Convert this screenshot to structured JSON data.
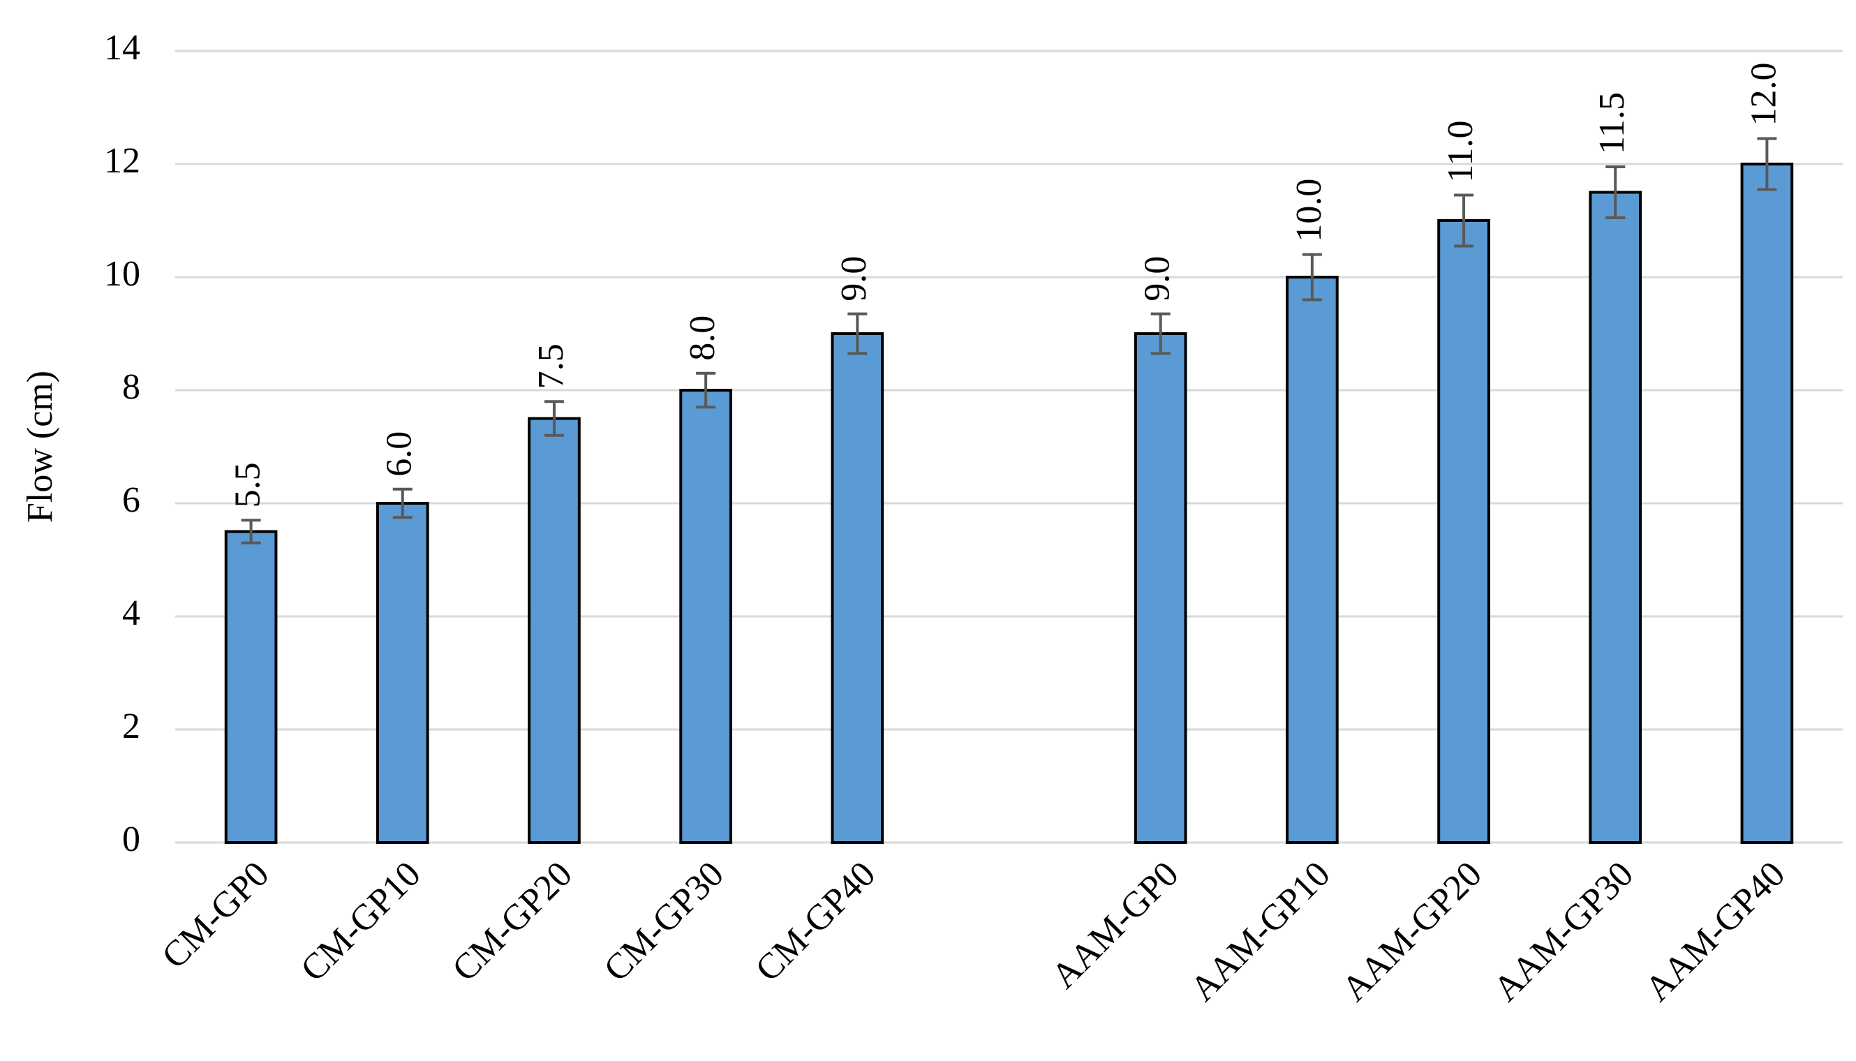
{
  "chart_data": {
    "type": "bar",
    "y_label": "Flow (cm)",
    "categories": [
      "CM-GP0",
      "CM-GP10",
      "CM-GP20",
      "CM-GP30",
      "CM-GP40",
      null,
      "AAM-GP0",
      "AAM-GP10",
      "AAM-GP20",
      "AAM-GP30",
      "AAM-GP40"
    ],
    "values": [
      5.5,
      6,
      7.5,
      8,
      9,
      null,
      9,
      10,
      11,
      11.5,
      12
    ],
    "value_labels": [
      "5.5",
      "6.0",
      "7.5",
      "8.0",
      "9.0",
      null,
      "9.0",
      "10.0",
      "11.0",
      "11.5",
      "12.0"
    ],
    "errors": [
      0.2,
      0.25,
      0.3,
      0.3,
      0.35,
      null,
      0.35,
      0.4,
      0.45,
      0.45,
      0.45
    ],
    "color": "#5b9bd5",
    "error_color": "#595959",
    "ylim": [
      0,
      14
    ],
    "yticks": [
      0,
      2,
      4,
      6,
      8,
      10,
      12,
      14
    ],
    "grid": true
  }
}
